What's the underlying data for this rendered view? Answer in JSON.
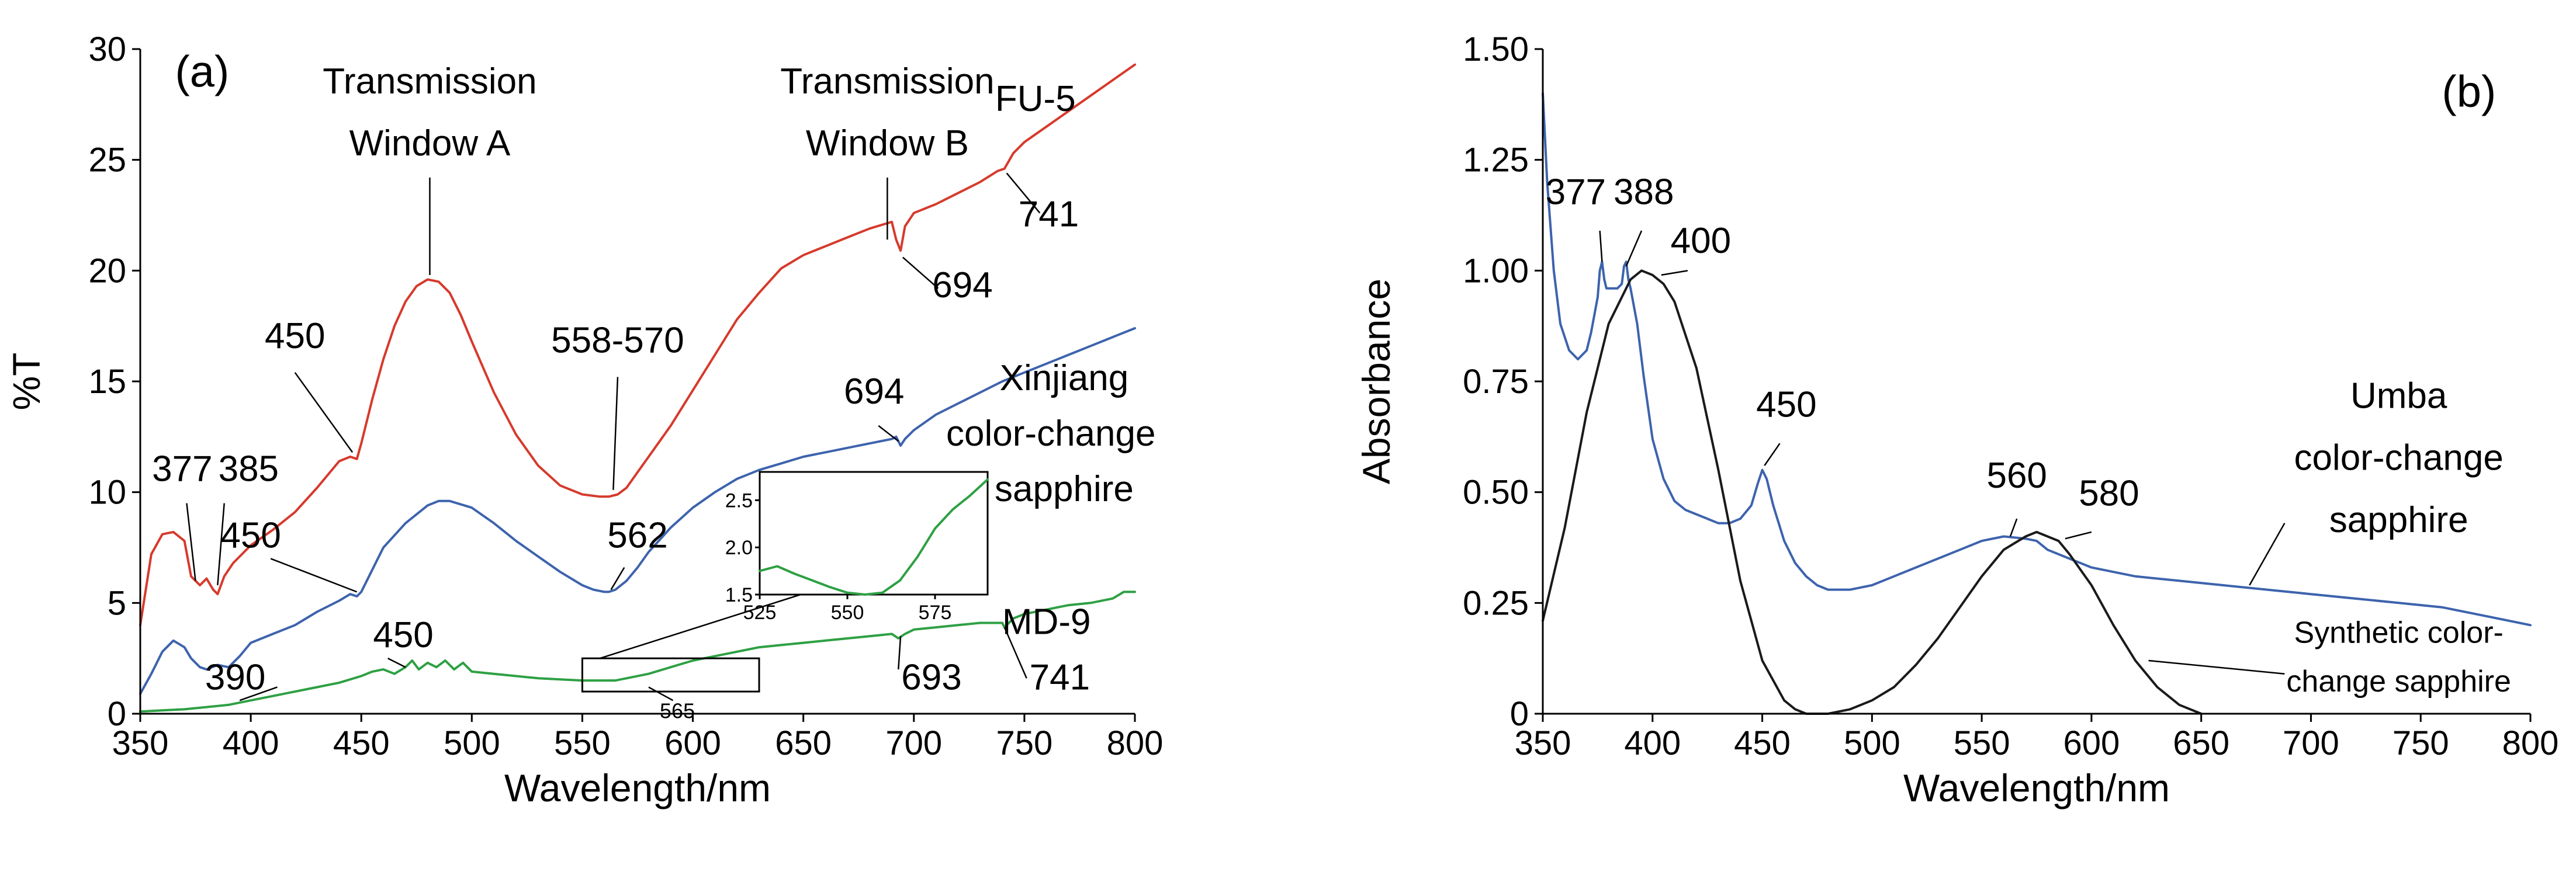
{
  "chart_data": [
    {
      "panel": "(a)",
      "type": "line",
      "xlabel": "Wavelength/nm",
      "ylabel": "%T",
      "xlim": [
        350,
        800
      ],
      "ylim": [
        0,
        30
      ],
      "xticks": [
        350,
        400,
        450,
        500,
        550,
        600,
        650,
        700,
        750,
        800
      ],
      "yticks": [
        0,
        5,
        10,
        15,
        20,
        25,
        30
      ],
      "grid": false,
      "series": [
        {
          "name": "FU-5",
          "color": "#d63a2c",
          "x": [
            350,
            355,
            360,
            365,
            370,
            373,
            377,
            380,
            383,
            385,
            388,
            392,
            400,
            410,
            420,
            430,
            440,
            445,
            448,
            450,
            455,
            460,
            465,
            470,
            475,
            480,
            485,
            490,
            495,
            500,
            510,
            520,
            530,
            540,
            550,
            558,
            562,
            566,
            570,
            575,
            580,
            590,
            600,
            610,
            620,
            630,
            640,
            650,
            660,
            670,
            680,
            690,
            692,
            694,
            696,
            700,
            710,
            720,
            730,
            738,
            741,
            745,
            750,
            760,
            770,
            780,
            790,
            800
          ],
          "y": [
            4.0,
            7.2,
            8.1,
            8.2,
            7.8,
            6.2,
            5.8,
            6.1,
            5.6,
            5.4,
            6.2,
            6.8,
            7.6,
            8.3,
            9.1,
            10.2,
            11.4,
            11.6,
            11.5,
            12.2,
            14.2,
            16.0,
            17.5,
            18.6,
            19.3,
            19.6,
            19.5,
            19.0,
            18.0,
            16.8,
            14.5,
            12.6,
            11.2,
            10.3,
            9.9,
            9.8,
            9.8,
            9.9,
            10.2,
            10.9,
            11.6,
            13.0,
            14.6,
            16.2,
            17.8,
            19.0,
            20.1,
            20.7,
            21.1,
            21.5,
            21.9,
            22.2,
            21.4,
            20.9,
            22.0,
            22.6,
            23.0,
            23.5,
            24.0,
            24.5,
            24.6,
            25.3,
            25.8,
            26.5,
            27.2,
            27.9,
            28.6,
            29.3
          ]
        },
        {
          "name": "Xinjiang color-change sapphire",
          "color": "#3d63ad",
          "x": [
            350,
            355,
            360,
            365,
            370,
            373,
            377,
            380,
            385,
            390,
            395,
            400,
            410,
            420,
            430,
            440,
            445,
            448,
            450,
            455,
            460,
            470,
            480,
            485,
            490,
            500,
            510,
            520,
            530,
            540,
            550,
            555,
            560,
            562,
            565,
            570,
            575,
            580,
            590,
            600,
            610,
            620,
            630,
            640,
            650,
            660,
            670,
            680,
            690,
            692,
            694,
            696,
            700,
            710,
            720,
            730,
            740,
            750,
            760,
            770,
            780,
            790,
            800
          ],
          "y": [
            0.9,
            1.8,
            2.8,
            3.3,
            3.0,
            2.5,
            2.1,
            2.0,
            2.2,
            2.1,
            2.6,
            3.2,
            3.6,
            4.0,
            4.6,
            5.1,
            5.4,
            5.3,
            5.5,
            6.5,
            7.5,
            8.6,
            9.4,
            9.6,
            9.6,
            9.3,
            8.6,
            7.8,
            7.1,
            6.4,
            5.8,
            5.6,
            5.5,
            5.5,
            5.6,
            6.0,
            6.6,
            7.3,
            8.4,
            9.3,
            10.0,
            10.6,
            11.0,
            11.3,
            11.6,
            11.8,
            12.0,
            12.2,
            12.4,
            12.5,
            12.1,
            12.4,
            12.8,
            13.5,
            14.0,
            14.5,
            15.0,
            15.4,
            15.8,
            16.2,
            16.6,
            17.0,
            17.4
          ]
        },
        {
          "name": "MD-9",
          "color": "#2ea043",
          "x": [
            350,
            360,
            370,
            380,
            390,
            400,
            410,
            420,
            430,
            440,
            450,
            455,
            460,
            465,
            470,
            473,
            476,
            480,
            484,
            488,
            492,
            496,
            500,
            510,
            520,
            530,
            540,
            550,
            560,
            565,
            570,
            580,
            590,
            600,
            610,
            620,
            630,
            640,
            650,
            660,
            670,
            680,
            690,
            693,
            696,
            700,
            710,
            720,
            730,
            740,
            741,
            745,
            750,
            760,
            770,
            780,
            790,
            795,
            800
          ],
          "y": [
            0.1,
            0.15,
            0.2,
            0.3,
            0.4,
            0.6,
            0.8,
            1.0,
            1.2,
            1.4,
            1.7,
            1.9,
            2.0,
            1.8,
            2.1,
            2.4,
            2.0,
            2.3,
            2.1,
            2.4,
            2.0,
            2.3,
            1.9,
            1.8,
            1.7,
            1.6,
            1.55,
            1.5,
            1.5,
            1.5,
            1.6,
            1.8,
            2.1,
            2.4,
            2.6,
            2.8,
            3.0,
            3.1,
            3.2,
            3.3,
            3.4,
            3.5,
            3.6,
            3.4,
            3.6,
            3.8,
            3.9,
            4.0,
            4.1,
            4.1,
            3.9,
            4.3,
            4.5,
            4.7,
            4.9,
            5.0,
            5.2,
            5.5,
            5.5
          ]
        }
      ],
      "annotations": [
        {
          "text": "(a)",
          "kind": "panel",
          "x": 378,
          "y": 28.3
        },
        {
          "text": "Transmission",
          "kind": "label",
          "x": 481,
          "y": 28.0
        },
        {
          "text": "Window A",
          "kind": "label",
          "x": 481,
          "y": 25.2
        },
        {
          "text": "Transmission",
          "kind": "label",
          "x": 688,
          "y": 28.0
        },
        {
          "text": "Window B",
          "kind": "label",
          "x": 688,
          "y": 25.2
        },
        {
          "text": "FU-5",
          "kind": "label",
          "x": 755,
          "y": 27.2
        },
        {
          "text": "450",
          "kind": "label",
          "x": 420,
          "y": 16.5
        },
        {
          "text": "558-570",
          "kind": "label",
          "x": 566,
          "y": 16.3
        },
        {
          "text": "694",
          "kind": "label",
          "x": 722,
          "y": 18.8
        },
        {
          "text": "741",
          "kind": "label",
          "x": 761,
          "y": 22.0
        },
        {
          "text": "694",
          "kind": "label",
          "x": 682,
          "y": 14.0
        },
        {
          "text": "Xinjiang",
          "kind": "label",
          "x": 768,
          "y": 14.6
        },
        {
          "text": "color-change",
          "kind": "label",
          "x": 762,
          "y": 12.1
        },
        {
          "text": "sapphire",
          "kind": "label",
          "x": 768,
          "y": 9.6
        },
        {
          "text": "377",
          "kind": "label",
          "x": 369,
          "y": 10.5
        },
        {
          "text": "385",
          "kind": "label",
          "x": 399,
          "y": 10.5
        },
        {
          "text": "450",
          "kind": "label",
          "x": 400,
          "y": 7.5
        },
        {
          "text": "562",
          "kind": "label",
          "x": 575,
          "y": 7.5
        },
        {
          "text": "390",
          "kind": "label",
          "x": 393,
          "y": 1.1
        },
        {
          "text": "450",
          "kind": "label",
          "x": 469,
          "y": 3.0
        },
        {
          "text": "565",
          "kind": "label",
          "x": 593,
          "y": -0.2
        },
        {
          "text": "693",
          "kind": "label",
          "x": 708,
          "y": 1.1
        },
        {
          "text": "741",
          "kind": "label",
          "x": 766,
          "y": 1.1
        },
        {
          "text": "MD-9",
          "kind": "label",
          "x": 760,
          "y": 3.6
        }
      ],
      "inset": {
        "xlim": [
          525,
          590
        ],
        "ylim": [
          1.5,
          2.8
        ],
        "xticks": [
          525,
          550,
          575
        ],
        "yticks": [
          1.5,
          2.0,
          2.5
        ],
        "xticklabels": [
          "525",
          "550",
          "575"
        ],
        "yticklabels": [
          "1.5",
          "2.0",
          "2.5"
        ],
        "color": "#2ea043",
        "x": [
          525,
          530,
          535,
          540,
          545,
          550,
          555,
          560,
          565,
          570,
          575,
          580,
          585,
          590
        ],
        "y": [
          1.75,
          1.8,
          1.72,
          1.65,
          1.58,
          1.52,
          1.5,
          1.52,
          1.65,
          1.9,
          2.2,
          2.4,
          2.55,
          2.72
        ],
        "zoom_region": {
          "x": [
            550,
            630
          ],
          "y": [
            1.0,
            2.5
          ]
        }
      }
    },
    {
      "panel": "(b)",
      "type": "line",
      "xlabel": "Wavelength/nm",
      "ylabel": "Absorbance",
      "xlim": [
        350,
        800
      ],
      "ylim": [
        0,
        1.5
      ],
      "xticks": [
        350,
        400,
        450,
        500,
        550,
        600,
        650,
        700,
        750,
        800
      ],
      "yticks": [
        0,
        0.25,
        0.5,
        0.75,
        1.0,
        1.25,
        1.5
      ],
      "yticklabels": [
        "0",
        "0.25",
        "0.50",
        "0.75",
        "1.00",
        "1.25",
        "1.50"
      ],
      "grid": false,
      "series": [
        {
          "name": "Umba color-change sapphire",
          "color": "#3d63ad",
          "x": [
            350,
            352,
            355,
            358,
            362,
            366,
            370,
            372,
            375,
            376,
            377,
            378,
            379,
            380,
            384,
            386,
            387,
            388,
            389,
            390,
            393,
            396,
            400,
            405,
            410,
            415,
            420,
            425,
            430,
            435,
            440,
            445,
            448,
            450,
            452,
            455,
            460,
            465,
            470,
            475,
            480,
            490,
            500,
            510,
            520,
            530,
            540,
            550,
            560,
            570,
            575,
            580,
            590,
            600,
            620,
            640,
            660,
            680,
            700,
            720,
            740,
            760,
            780,
            800
          ],
          "y": [
            1.4,
            1.2,
            1.0,
            0.88,
            0.82,
            0.8,
            0.82,
            0.86,
            0.94,
            1.0,
            1.02,
            0.98,
            0.96,
            0.96,
            0.96,
            0.97,
            1.01,
            1.02,
            0.98,
            0.96,
            0.88,
            0.76,
            0.62,
            0.53,
            0.48,
            0.46,
            0.45,
            0.44,
            0.43,
            0.43,
            0.44,
            0.47,
            0.52,
            0.55,
            0.53,
            0.47,
            0.39,
            0.34,
            0.31,
            0.29,
            0.28,
            0.28,
            0.29,
            0.31,
            0.33,
            0.35,
            0.37,
            0.39,
            0.4,
            0.395,
            0.39,
            0.37,
            0.35,
            0.33,
            0.31,
            0.3,
            0.29,
            0.28,
            0.27,
            0.26,
            0.25,
            0.24,
            0.22,
            0.2
          ]
        },
        {
          "name": "Synthetic color-change sapphire",
          "color": "#1a1a1a",
          "x": [
            350,
            360,
            370,
            380,
            390,
            395,
            400,
            405,
            410,
            420,
            430,
            440,
            450,
            460,
            465,
            470,
            480,
            490,
            500,
            510,
            520,
            530,
            540,
            550,
            560,
            570,
            575,
            580,
            585,
            590,
            600,
            610,
            620,
            630,
            640,
            650
          ],
          "y": [
            0.21,
            0.42,
            0.68,
            0.88,
            0.98,
            1.0,
            0.99,
            0.97,
            0.93,
            0.78,
            0.55,
            0.3,
            0.12,
            0.03,
            0.01,
            0.0,
            0.0,
            0.01,
            0.03,
            0.06,
            0.11,
            0.17,
            0.24,
            0.31,
            0.37,
            0.4,
            0.41,
            0.4,
            0.39,
            0.36,
            0.29,
            0.2,
            0.12,
            0.06,
            0.02,
            0.0
          ]
        }
      ],
      "annotations": [
        {
          "text": "(b)",
          "kind": "panel",
          "x": 772,
          "y": 1.37
        },
        {
          "text": "377",
          "kind": "label",
          "x": 365,
          "y": 1.15
        },
        {
          "text": "388",
          "kind": "label",
          "x": 396,
          "y": 1.15
        },
        {
          "text": "400",
          "kind": "label",
          "x": 422,
          "y": 1.04
        },
        {
          "text": "450",
          "kind": "label",
          "x": 461,
          "y": 0.67
        },
        {
          "text": "560",
          "kind": "label",
          "x": 566,
          "y": 0.51
        },
        {
          "text": "580",
          "kind": "label",
          "x": 608,
          "y": 0.47
        },
        {
          "text": "Umba",
          "kind": "label",
          "x": 740,
          "y": 0.69
        },
        {
          "text": "color-change",
          "kind": "label",
          "x": 740,
          "y": 0.55
        },
        {
          "text": "sapphire",
          "kind": "label",
          "x": 740,
          "y": 0.41
        },
        {
          "text": "Synthetic color-",
          "kind": "label",
          "x": 740,
          "y": 0.16
        },
        {
          "text": "change sapphire",
          "kind": "label",
          "x": 740,
          "y": 0.05
        }
      ]
    }
  ]
}
